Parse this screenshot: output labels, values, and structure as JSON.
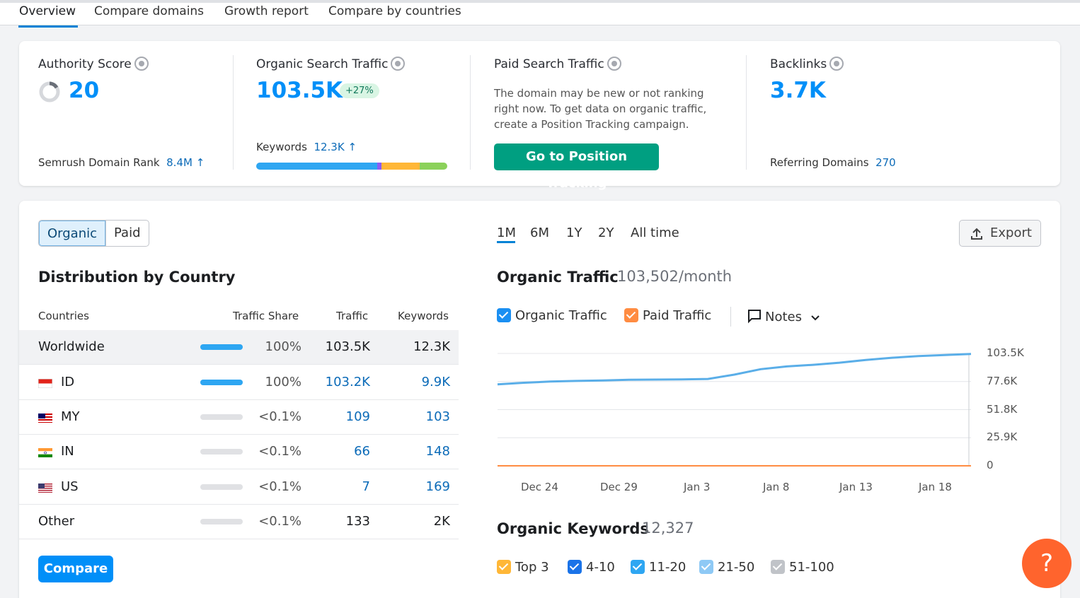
{
  "tabs": [
    "Overview",
    "Compare domains",
    "Growth report",
    "Compare by countries"
  ],
  "authority": {
    "title": "Authority Score",
    "value": "20",
    "rank_label": "Semrush Domain Rank",
    "rank_value": "8.4M ↑"
  },
  "organic": {
    "title": "Organic Search Traffic",
    "value": "103.5K",
    "change": "+27%",
    "keywords_label": "Keywords",
    "keywords_value": "12.3K ↑"
  },
  "paid": {
    "title": "Paid Search Traffic",
    "message": "The domain may be new or not ranking right now. To get data on organic traffic, create a Position Tracking campaign.",
    "button": "Go to Position Tracking"
  },
  "backlinks": {
    "title": "Backlinks",
    "value": "3.7K",
    "ref_label": "Referring Domains",
    "ref_value": "270"
  },
  "toggle": {
    "organic": "Organic",
    "paid": "Paid"
  },
  "distribution": {
    "title": "Distribution by Country",
    "headers": {
      "countries": "Countries",
      "share": "Traffic Share",
      "traffic": "Traffic",
      "keywords": "Keywords"
    },
    "rows": [
      {
        "country": "Worldwide",
        "share": "100%",
        "traffic": "103.5K",
        "keywords": "12.3K",
        "bar_fraction": 1.0
      },
      {
        "country": "ID",
        "share": "100%",
        "traffic": "103.2K",
        "keywords": "9.9K",
        "bar_fraction": 1.0
      },
      {
        "country": "MY",
        "share": "<0.1%",
        "traffic": "109",
        "keywords": "103",
        "bar_fraction": 0
      },
      {
        "country": "IN",
        "share": "<0.1%",
        "traffic": "66",
        "keywords": "148",
        "bar_fraction": 0
      },
      {
        "country": "US",
        "share": "<0.1%",
        "traffic": "7",
        "keywords": "169",
        "bar_fraction": 0
      },
      {
        "country": "Other",
        "share": "<0.1%",
        "traffic": "133",
        "keywords": "2K",
        "bar_fraction": 0
      }
    ],
    "compare_button": "Compare"
  },
  "ranges": [
    "1M",
    "6M",
    "1Y",
    "2Y",
    "All time"
  ],
  "active_range": "1M",
  "export_label": "Export",
  "traffic_chart": {
    "title": "Organic Traffic",
    "subtitle": "103,502/month",
    "legend": {
      "organic": "Organic Traffic",
      "paid": "Paid Traffic",
      "notes": "Notes"
    },
    "colors": {
      "organic": "#5aaee8",
      "paid": "#ff8c42"
    }
  },
  "chart_data": {
    "type": "line",
    "y_ticks": [
      "103.5K",
      "77.6K",
      "51.8K",
      "25.9K",
      "0"
    ],
    "x_ticks": [
      "Dec 24",
      "Dec 29",
      "Jan 3",
      "Jan 8",
      "Jan 13",
      "Jan 18"
    ],
    "ylim": [
      0,
      103500
    ],
    "series": [
      {
        "name": "Organic Traffic",
        "values": [
          75000,
          76500,
          77600,
          78200,
          78600,
          79200,
          79400,
          79600,
          80000,
          84000,
          89000,
          91500,
          93000,
          95000,
          97500,
          99500,
          101000,
          102000,
          103000
        ]
      },
      {
        "name": "Paid Traffic",
        "values": [
          0,
          0,
          0,
          0,
          0,
          0,
          0,
          0,
          0,
          0,
          0,
          0,
          0,
          0,
          0,
          0,
          0,
          0,
          0
        ]
      }
    ]
  },
  "keywords_chart": {
    "title": "Organic Keywords",
    "count": "12,327",
    "legend": [
      "Top 3",
      "4-10",
      "11-20",
      "21-50",
      "51-100"
    ]
  },
  "help": "?"
}
